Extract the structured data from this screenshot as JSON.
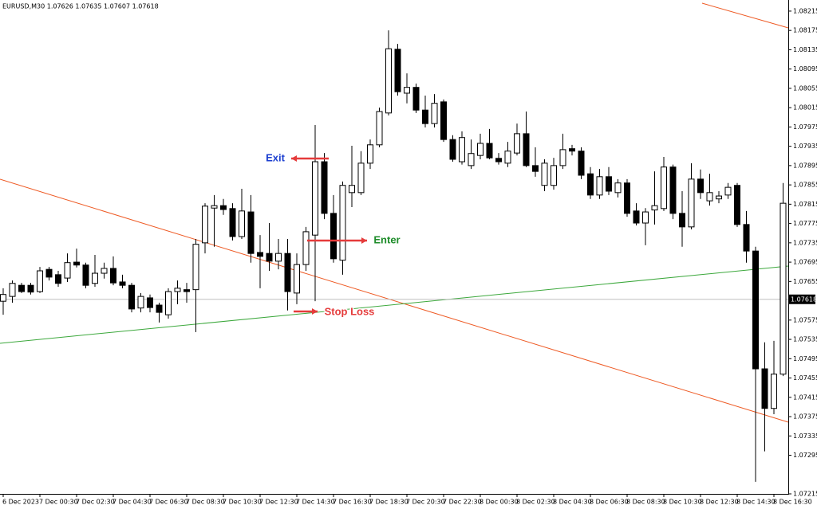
{
  "chart_data": {
    "type": "candlestick",
    "title": "EURUSD,M30 1.07626 1.07635 1.07607 1.07618",
    "categories": [
      "6 Dec 2023",
      null,
      null,
      null,
      "7 Dec 00:30",
      null,
      null,
      null,
      "7 Dec 02:30",
      null,
      null,
      null,
      "7 Dec 04:30",
      null,
      null,
      null,
      "7 Dec 06:30",
      null,
      null,
      null,
      "7 Dec 08:30",
      null,
      null,
      null,
      "7 Dec 10:30",
      null,
      null,
      null,
      "7 Dec 12:30",
      null,
      null,
      null,
      "7 Dec 14:30",
      null,
      null,
      null,
      "7 Dec 16:30",
      null,
      null,
      null,
      "7 Dec 18:30",
      null,
      null,
      null,
      "7 Dec 20:30",
      null,
      null,
      null,
      "7 Dec 22:30",
      null,
      null,
      null,
      "8 Dec 00:30",
      null,
      null,
      null,
      "8 Dec 02:30",
      null,
      null,
      null,
      "8 Dec 04:30",
      null,
      null,
      null,
      "8 Dec 06:30",
      null,
      null,
      null,
      "8 Dec 08:30",
      null,
      null,
      null,
      "8 Dec 10:30",
      null,
      null,
      null,
      "8 Dec 12:30",
      null,
      null,
      null,
      "8 Dec 14:30",
      null,
      null,
      null,
      "8 Dec 16:30",
      null
    ],
    "open": [
      1.07614,
      1.07624,
      1.07647,
      1.07647,
      1.07634,
      1.0768,
      1.07669,
      1.07662,
      1.07695,
      1.07689,
      1.07651,
      1.07672,
      1.07682,
      1.07654,
      1.07647,
      1.076,
      1.07621,
      1.07606,
      1.07586,
      1.07634,
      1.07638,
      1.07638,
      1.07735,
      1.07807,
      1.07812,
      1.07806,
      1.07748,
      1.07799,
      1.07715,
      1.07713,
      1.07697,
      1.07713,
      1.07631,
      1.0769,
      1.07751,
      1.07903,
      1.07796,
      1.07699,
      1.07839,
      1.07839,
      1.079,
      1.07938,
      1.08004,
      1.08136,
      1.08045,
      1.08057,
      1.0801,
      1.07982,
      1.08027,
      1.07949,
      1.07903,
      1.07895,
      1.07916,
      1.07941,
      1.0791,
      1.079,
      1.07921,
      1.07961,
      1.07895,
      1.07854,
      1.07854,
      1.07895,
      1.0793,
      1.07925,
      1.07878,
      1.07834,
      1.07872,
      1.07839,
      1.07859,
      1.07801,
      1.07776,
      1.07803,
      1.07806,
      1.07892,
      1.07796,
      1.07768,
      1.07867,
      1.07822,
      1.07826,
      1.07834,
      1.07854,
      1.07773,
      1.07718,
      1.07474,
      1.07392,
      1.07463
    ],
    "high": [
      1.07641,
      1.07657,
      1.07652,
      1.07652,
      1.07685,
      1.07685,
      1.07677,
      1.07713,
      1.07723,
      1.07694,
      1.0771,
      1.07694,
      1.07707,
      1.07669,
      1.07652,
      1.07631,
      1.07628,
      1.07611,
      1.07641,
      1.07657,
      1.07652,
      1.07743,
      1.07817,
      1.07834,
      1.07826,
      1.07817,
      1.07847,
      1.07834,
      1.07751,
      1.07776,
      1.07743,
      1.07743,
      1.07713,
      1.07768,
      1.07979,
      1.07921,
      1.07834,
      1.07862,
      1.07936,
      1.07925,
      1.07949,
      1.08015,
      1.08175,
      1.08147,
      1.08086,
      1.08065,
      1.0804,
      1.08043,
      1.08032,
      1.07958,
      1.07966,
      1.07949,
      1.07961,
      1.07971,
      1.07921,
      1.07944,
      1.07982,
      1.08007,
      1.07933,
      1.07908,
      1.07911,
      1.07961,
      1.07938,
      1.07933,
      1.07892,
      1.07888,
      1.07892,
      1.07867,
      1.07867,
      1.07817,
      1.07807,
      1.07883,
      1.07913,
      1.07897,
      1.07842,
      1.079,
      1.07887,
      1.07878,
      1.07842,
      1.07859,
      1.07859,
      1.07801,
      1.07727,
      1.07529,
      1.07532,
      1.07859
    ],
    "low": [
      1.07586,
      1.07611,
      1.07631,
      1.07628,
      1.07631,
      1.07657,
      1.07644,
      1.07654,
      1.07684,
      1.07641,
      1.07644,
      1.07661,
      1.07647,
      1.07641,
      1.07591,
      1.07591,
      1.07591,
      1.0757,
      1.07578,
      1.07608,
      1.07611,
      1.0755,
      1.07713,
      1.07727,
      1.07793,
      1.0774,
      1.07743,
      1.07694,
      1.07641,
      1.07677,
      1.0768,
      1.07595,
      1.07608,
      1.07677,
      1.07614,
      1.07784,
      1.07694,
      1.07669,
      1.07809,
      1.07834,
      1.07888,
      1.07933,
      1.07999,
      1.0804,
      1.08024,
      1.08004,
      1.07974,
      1.07974,
      1.07944,
      1.07903,
      1.07897,
      1.07888,
      1.07908,
      1.07908,
      1.07897,
      1.07892,
      1.07916,
      1.07892,
      1.07872,
      1.07842,
      1.07845,
      1.07888,
      1.07916,
      1.07867,
      1.07826,
      1.07826,
      1.07834,
      1.07829,
      1.07789,
      1.07771,
      1.0773,
      1.07773,
      1.07801,
      1.07784,
      1.07727,
      1.07763,
      1.07826,
      1.07812,
      1.07817,
      1.07826,
      1.07768,
      1.07694,
      1.0724,
      1.07303,
      1.0738,
      1.07459
    ],
    "close": [
      1.07628,
      1.07651,
      1.07634,
      1.07633,
      1.07677,
      1.07664,
      1.07651,
      1.07694,
      1.07689,
      1.07647,
      1.07672,
      1.07682,
      1.07652,
      1.07647,
      1.07598,
      1.07624,
      1.07601,
      1.07591,
      1.07634,
      1.07641,
      1.07634,
      1.07732,
      1.07811,
      1.07812,
      1.07804,
      1.07748,
      1.07801,
      1.07713,
      1.07707,
      1.07697,
      1.07713,
      1.07634,
      1.0769,
      1.07758,
      1.07903,
      1.07796,
      1.07702,
      1.07854,
      1.07854,
      1.079,
      1.07938,
      1.08007,
      1.08137,
      1.08048,
      1.08057,
      1.0801,
      1.07982,
      1.08024,
      1.07949,
      1.07908,
      1.07953,
      1.0792,
      1.07941,
      1.07911,
      1.07903,
      1.07925,
      1.07961,
      1.07895,
      1.07883,
      1.079,
      1.07895,
      1.07928,
      1.07925,
      1.07875,
      1.07834,
      1.07872,
      1.07842,
      1.07859,
      1.07796,
      1.07776,
      1.07799,
      1.07812,
      1.07892,
      1.07796,
      1.07768,
      1.07867,
      1.07839,
      1.07839,
      1.07832,
      1.0785,
      1.07773,
      1.07718,
      1.07474,
      1.07392,
      1.07463,
      1.07817
    ],
    "up_color": "#ffffff",
    "down_color": "#000000",
    "ylim": [
      1.07215,
      1.08238
    ],
    "yticks": [
      1.08215,
      1.08175,
      1.08135,
      1.08095,
      1.08055,
      1.08015,
      1.07975,
      1.07935,
      1.07895,
      1.07855,
      1.07815,
      1.07775,
      1.07735,
      1.07695,
      1.07655,
      1.07575,
      1.07535,
      1.07495,
      1.07455,
      1.07415,
      1.07375,
      1.07335,
      1.07295,
      1.07215
    ],
    "last_price": 1.07618,
    "annotations": [
      {
        "text": "Exit",
        "color": "#1c3fd0"
      },
      {
        "text": "Enter",
        "color": "#1e8c2a"
      },
      {
        "text": "Stop Loss",
        "color": "#e53b3b"
      }
    ]
  }
}
